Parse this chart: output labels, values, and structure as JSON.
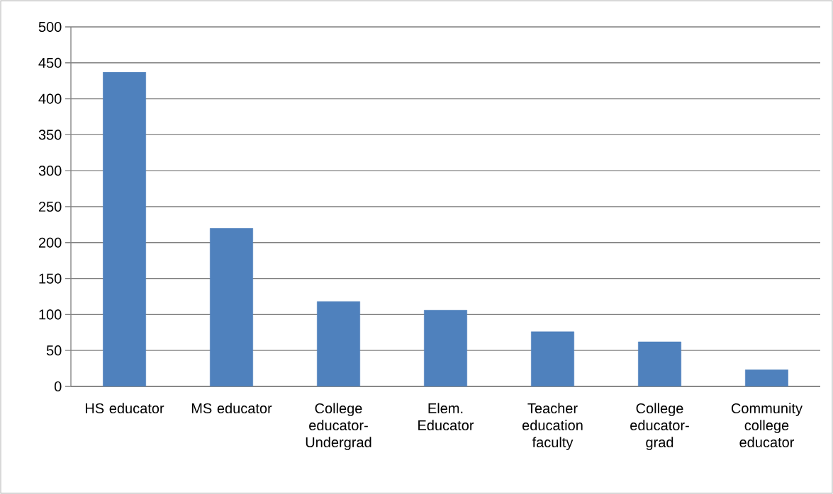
{
  "chart_data": {
    "type": "bar",
    "categories": [
      "HS educator",
      "MS educator",
      "College educator-Undergrad",
      "Elem. Educator",
      "Teacher education faculty",
      "College educator-grad",
      "Community college educator"
    ],
    "values": [
      437,
      220,
      118,
      106,
      76,
      62,
      23
    ],
    "color": "#4f81bd",
    "ylim": [
      0,
      500
    ],
    "yticks": [
      0,
      50,
      100,
      150,
      200,
      250,
      300,
      350,
      400,
      450,
      500
    ],
    "grid": "y"
  }
}
